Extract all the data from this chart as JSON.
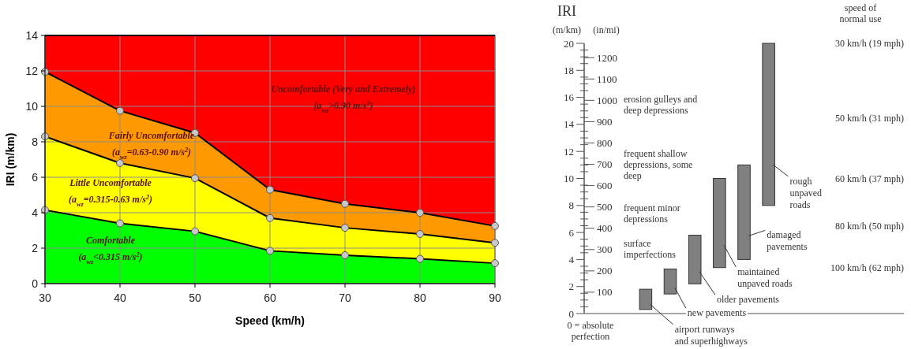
{
  "chart_data": [
    {
      "type": "area",
      "stacked": true,
      "xlabel": "Speed (km/h)",
      "ylabel": "IRI (m/km)",
      "x": [
        30,
        40,
        50,
        60,
        70,
        80,
        90
      ],
      "xlim": [
        30,
        90
      ],
      "xticks": [
        30,
        40,
        50,
        60,
        70,
        80,
        90
      ],
      "ylim": [
        0,
        14
      ],
      "yticks": [
        0,
        2,
        4,
        6,
        8,
        10,
        12,
        14
      ],
      "grid": true,
      "marker": "circle",
      "line_style": "solid",
      "series": [
        {
          "color": "#00ff00",
          "values": [
            4.15,
            3.4,
            2.95,
            1.85,
            1.6,
            1.4,
            1.15
          ]
        },
        {
          "color": "#ffff00",
          "values": [
            4.15,
            3.4,
            3.0,
            1.85,
            1.55,
            1.4,
            1.15
          ]
        },
        {
          "color": "#ff9900",
          "values": [
            3.65,
            2.95,
            2.55,
            1.6,
            1.35,
            1.2,
            0.95
          ]
        },
        {
          "color": "#ff0000",
          "values": [
            2.05,
            4.25,
            5.5,
            8.7,
            9.5,
            10.0,
            10.75
          ],
          "marker": "none"
        }
      ],
      "annotations": [
        "Uncomfortable (Very and Extremely)\n(a$_{wz}$>0.90 m/s$^{2}$)",
        "Fairly Uncomfortable\n(a$_{wz}$=0.63-0.90 m/s$^{2}$)",
        "Little Uncomfortable\n(a$_{wz}$=0.315-0.63 m/s$^{2}$)",
        "Comfortable\n(a$_{wz}$<0.315 m/s$^{2}$)"
      ]
    },
    {
      "type": "bar",
      "title": "IRI",
      "ylabel": "(m/km)",
      "y2label": "(in/mi)",
      "tick_labels": "y",
      "categories": [
        null,
        null,
        null,
        null,
        null,
        null,
        null,
        null,
        null,
        null,
        null,
        null,
        null
      ],
      "base": [
        null,
        null,
        0.3,
        1.45,
        2.2,
        3.4,
        4.0,
        8.0,
        null,
        null,
        null,
        null,
        null
      ],
      "values": [
        null,
        null,
        1.5,
        1.85,
        3.6,
        6.6,
        7.0,
        12.0,
        null,
        null,
        null,
        null,
        null
      ],
      "color": "#808080",
      "ylim": [
        0,
        20
      ],
      "yticks": [
        0,
        {
          "value": 0.5,
          "label": null
        },
        {
          "value": 1,
          "label": null
        },
        {
          "value": 1.5,
          "label": null
        },
        2,
        {
          "value": 2.5,
          "label": null
        },
        {
          "value": 3,
          "label": null
        },
        {
          "value": 3.5,
          "label": null
        },
        4,
        {
          "value": 4.5,
          "label": null
        },
        {
          "value": 5,
          "label": null
        },
        {
          "value": 5.5,
          "label": null
        },
        6,
        {
          "value": 6.5,
          "label": null
        },
        {
          "value": 7,
          "label": null
        },
        {
          "value": 7.5,
          "label": null
        },
        8,
        {
          "value": 8.5,
          "label": null
        },
        {
          "value": 9,
          "label": null
        },
        {
          "value": 9.5,
          "label": null
        },
        10,
        {
          "value": 10.5,
          "label": null
        },
        {
          "value": 11,
          "label": null
        },
        {
          "value": 11.5,
          "label": null
        },
        12,
        {
          "value": 12.5,
          "label": null
        },
        {
          "value": 13,
          "label": null
        },
        {
          "value": 13.5,
          "label": null
        },
        14,
        {
          "value": 14.5,
          "label": null
        },
        {
          "value": 15,
          "label": null
        },
        {
          "value": 15.5,
          "label": null
        },
        16,
        {
          "value": 16.5,
          "label": null
        },
        {
          "value": 17,
          "label": null
        },
        {
          "value": 17.5,
          "label": null
        },
        18,
        {
          "value": 18.5,
          "label": null
        },
        {
          "value": 19,
          "label": null
        },
        {
          "value": 19.5,
          "label": null
        },
        20
      ],
      "y2lim": [
        0,
        1267.2
      ],
      "y2ticks": [
        100,
        200,
        300,
        400,
        500,
        600,
        700,
        800,
        900,
        1000,
        1100,
        1200
      ],
      "annotations": [
        "0 = absolute\nperfection",
        "erosion gulleys and\ndeep depressions",
        "frequent shallow\ndepressions, some\ndeep",
        "frequent minor\ndepressions",
        "surface\nimperfections",
        "speed of\nnormal use",
        "30 km/h (19 mph)",
        "50 km/h (31 mph)",
        "60 km/h (37 mph)",
        "80 km/h (50 mph)",
        "100 km/h (62 mph)",
        "airport runways\nand superhighways",
        "new pavements",
        "older pavements",
        "maintained\nunpaved roads",
        "damaged\npavements",
        "rough\nunpaved\nroads"
      ]
    }
  ]
}
